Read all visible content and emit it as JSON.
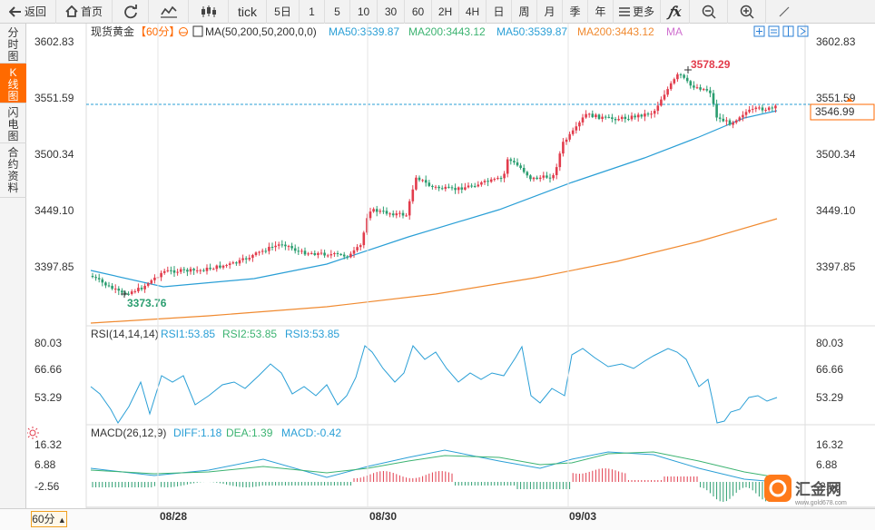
{
  "toolbar": {
    "back": "返回",
    "home": "首页",
    "tick": "tick",
    "periods": [
      "5日",
      "1",
      "5",
      "10",
      "30",
      "60",
      "2H",
      "4H",
      "日",
      "周",
      "月",
      "季",
      "年"
    ],
    "more": "更多"
  },
  "sidebar": {
    "tabs": [
      "分时图",
      "K线图",
      "闪电图",
      "合约资料"
    ],
    "active": 1
  },
  "legend": {
    "instrument": "现货黄金",
    "period": "【60分】",
    "ma_formula": "MA(50,200,50,200,0,0)",
    "ma_items": [
      {
        "label": "MA50:3539.87",
        "color": "#2a9fd6"
      },
      {
        "label": "MA200:3443.12",
        "color": "#3cb371"
      },
      {
        "label": "MA50:3539.87",
        "color": "#2a9fd6"
      },
      {
        "label": "MA200:3443.12",
        "color": "#f08a30"
      },
      {
        "label": "MA",
        "color": "#d070d0"
      }
    ]
  },
  "price_axis": {
    "ticks": [
      "3602.83",
      "3551.59",
      "3500.34",
      "3449.10",
      "3397.85"
    ],
    "current_price": "3546.99"
  },
  "annotations": {
    "high": "3578.29",
    "low": "3373.76"
  },
  "rsi": {
    "formula": "RSI(14,14,14)",
    "items": [
      {
        "label": "RSI1:53.85",
        "color": "#2a9fd6"
      },
      {
        "label": "RSI2:53.85",
        "color": "#3cb371"
      },
      {
        "label": "RSI3:53.85",
        "color": "#2a9fd6"
      }
    ],
    "ticks": [
      "80.03",
      "66.66",
      "53.29"
    ]
  },
  "macd": {
    "formula": "MACD(26,12,9)",
    "items": [
      {
        "label": "DIFF:1.18",
        "color": "#2a9fd6"
      },
      {
        "label": "DEA:1.39",
        "color": "#3cb371"
      },
      {
        "label": "MACD:-0.42",
        "color": "#2a9fd6"
      }
    ],
    "ticks": [
      "16.32",
      "6.88",
      "-2.56"
    ]
  },
  "dates": [
    "08/28",
    "08/30",
    "09/03"
  ],
  "bottom": {
    "period": "60分"
  },
  "watermark": {
    "text": "汇金网",
    "url": "www.gold678.com"
  },
  "colors": {
    "up": "#e23c4c",
    "down": "#2a9d6f",
    "ma50": "#2a9fd6",
    "ma200": "#f08a30",
    "accent": "#ff6a00"
  }
}
